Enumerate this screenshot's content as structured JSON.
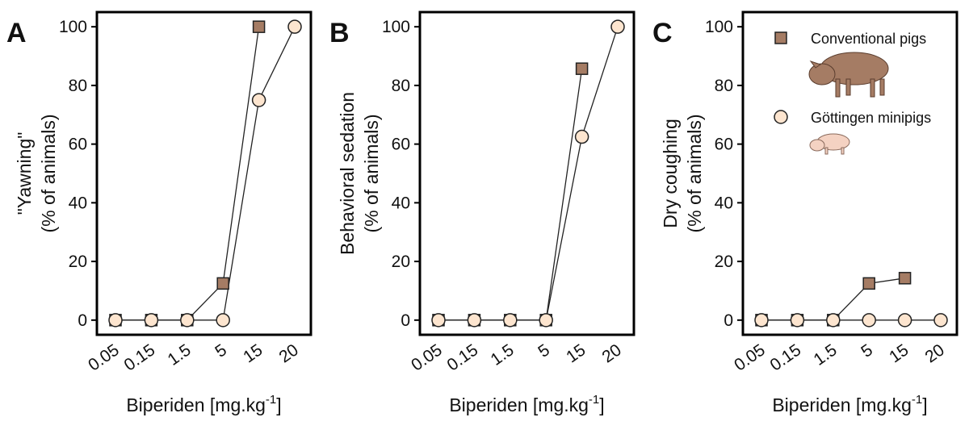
{
  "chart_data": [
    {
      "type": "line",
      "panel": "A",
      "ylabel": [
        "\"Yawning\"",
        "(% of animals)"
      ],
      "xlabel": [
        "Biperiden [mg.kg",
        "-1",
        "]"
      ],
      "categories": [
        "0.05",
        "0.15",
        "1.5",
        "5",
        "15",
        "20"
      ],
      "series": [
        {
          "name": "Conventional pigs",
          "color": "#a57c64",
          "marker": "square",
          "values": [
            0,
            0,
            0,
            12.5,
            100,
            null
          ]
        },
        {
          "name": "Göttingen minipigs",
          "color": "#fde5cf",
          "marker": "circle",
          "values": [
            0,
            0,
            0,
            0,
            75,
            100
          ]
        }
      ],
      "ylim": [
        -5,
        105
      ],
      "yticks": [
        0,
        20,
        40,
        60,
        80,
        100
      ],
      "legend": false
    },
    {
      "type": "line",
      "panel": "B",
      "ylabel": [
        "Behavioral sedation",
        "(% of animals)"
      ],
      "xlabel": [
        "Biperiden [mg.kg",
        "-1",
        "]"
      ],
      "categories": [
        "0.05",
        "0.15",
        "1.5",
        "5",
        "15",
        "20"
      ],
      "series": [
        {
          "name": "Conventional pigs",
          "color": "#a57c64",
          "marker": "square",
          "values": [
            0,
            0,
            0,
            0,
            85.7,
            null
          ]
        },
        {
          "name": "Göttingen minipigs",
          "color": "#fde5cf",
          "marker": "circle",
          "values": [
            0,
            0,
            0,
            0,
            62.5,
            100
          ]
        }
      ],
      "ylim": [
        -5,
        105
      ],
      "yticks": [
        0,
        20,
        40,
        60,
        80,
        100
      ],
      "legend": false
    },
    {
      "type": "line",
      "panel": "C",
      "ylabel": [
        "Dry coughing",
        "(% of animals)"
      ],
      "xlabel": [
        "Biperiden [mg.kg",
        "-1",
        "]"
      ],
      "categories": [
        "0.05",
        "0.15",
        "1.5",
        "5",
        "15",
        "20"
      ],
      "series": [
        {
          "name": "Conventional pigs",
          "color": "#a57c64",
          "marker": "square",
          "values": [
            0,
            0,
            0,
            12.5,
            14.3,
            null
          ]
        },
        {
          "name": "Göttingen minipigs",
          "color": "#fde5cf",
          "marker": "circle",
          "values": [
            0,
            0,
            0,
            0,
            0,
            0
          ]
        }
      ],
      "ylim": [
        -5,
        105
      ],
      "yticks": [
        0,
        20,
        40,
        60,
        80,
        100
      ],
      "legend": true,
      "legend_position": "upper left"
    }
  ]
}
